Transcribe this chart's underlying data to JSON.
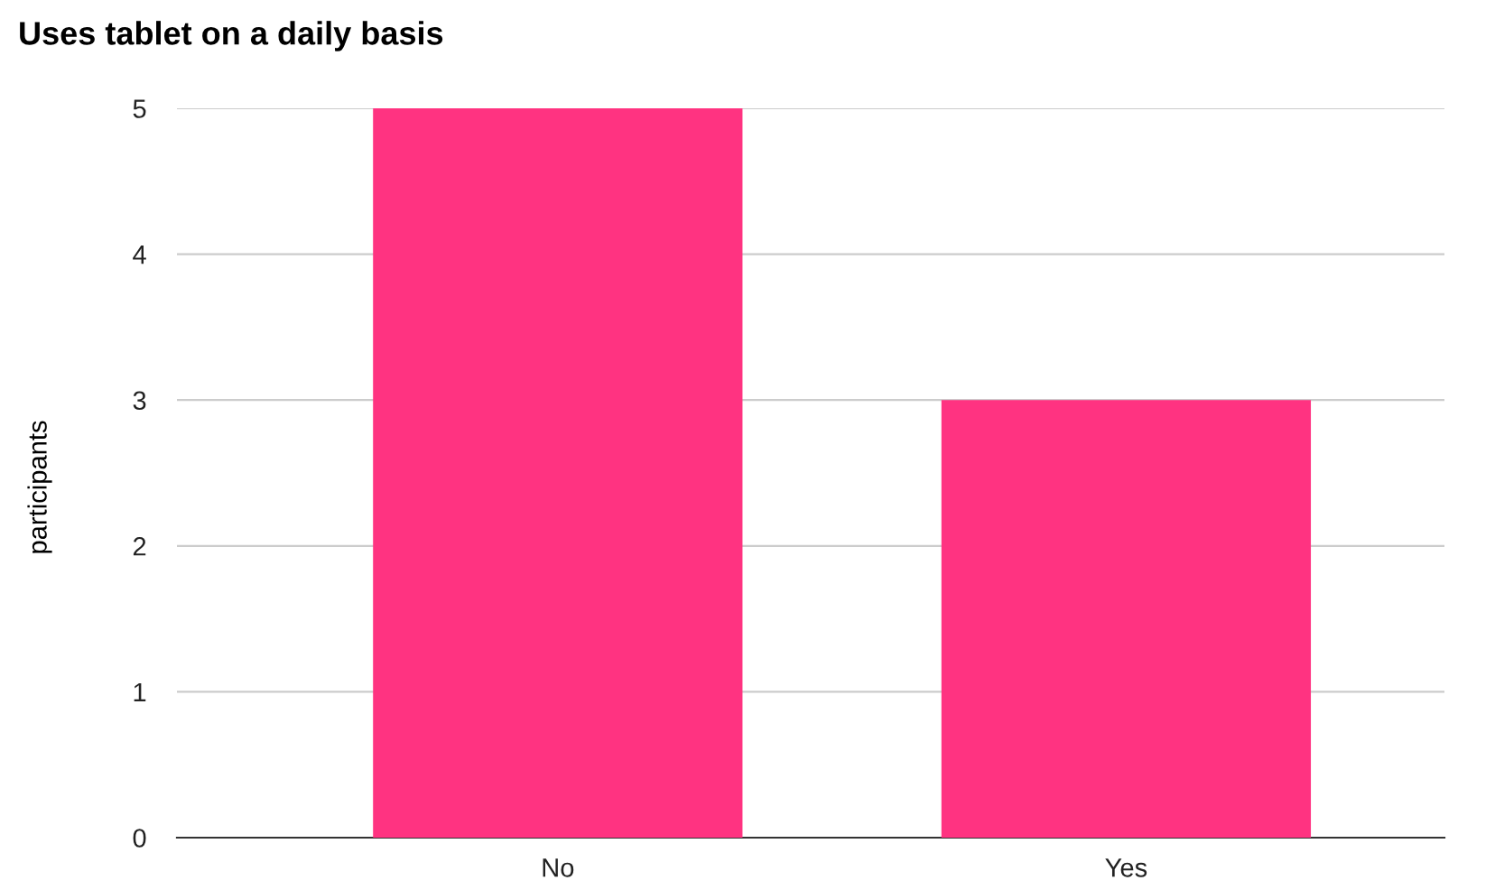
{
  "chart_data": {
    "type": "bar",
    "title": "Uses tablet on a daily basis",
    "ylabel": "participants",
    "categories": [
      "No",
      "Yes"
    ],
    "values": [
      5,
      3
    ],
    "color": "#ff3381",
    "ylim": [
      0,
      5
    ],
    "yticks": [
      0,
      1,
      2,
      3,
      4,
      5
    ],
    "grid": "y",
    "legend": false
  }
}
